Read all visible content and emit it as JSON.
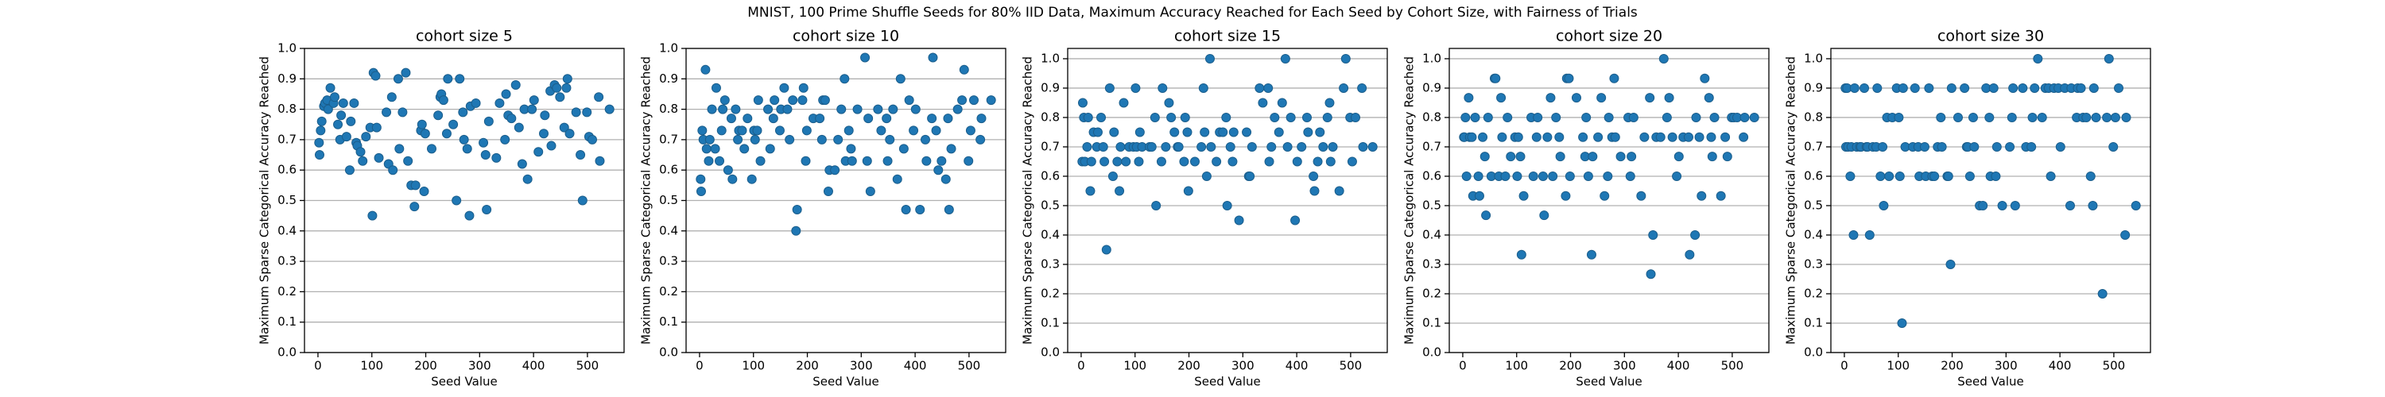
{
  "title": "MNIST, 100 Prime Shuffle Seeds for 80% IID Data, Maximum Accuracy Reached for Each Seed by Cohort Size, with Fairness of Trials",
  "chart_data": [
    {
      "type": "scatter",
      "title": "cohort size 5",
      "xlabel": "Seed Value",
      "ylabel": "Maximum Sparse Categorical Accuracy Reached",
      "color": "#1f77b4",
      "grid": "y",
      "xlim": [
        -25,
        568
      ],
      "ylim": [
        0,
        1
      ],
      "xticks": [
        0,
        100,
        200,
        300,
        400,
        500
      ],
      "yticks": [
        {
          "value": 0,
          "label": "0.0"
        },
        0.1,
        0.2,
        0.3,
        0.4,
        0.5,
        0.6,
        0.7,
        0.8,
        0.9,
        {
          "value": 1,
          "label": "1.0"
        }
      ],
      "x": [
        2,
        3,
        5,
        7,
        11,
        13,
        17,
        19,
        23,
        29,
        31,
        37,
        41,
        43,
        47,
        53,
        59,
        61,
        67,
        71,
        73,
        79,
        83,
        89,
        97,
        101,
        103,
        107,
        109,
        113,
        127,
        131,
        137,
        139,
        149,
        151,
        157,
        163,
        167,
        173,
        179,
        181,
        191,
        193,
        197,
        199,
        211,
        223,
        227,
        229,
        233,
        239,
        241,
        251,
        257,
        263,
        269,
        271,
        277,
        281,
        283,
        293,
        307,
        311,
        313,
        317,
        331,
        337,
        347,
        349,
        353,
        359,
        367,
        373,
        379,
        383,
        389,
        397,
        401,
        409,
        419,
        421,
        431,
        433,
        439,
        443,
        449,
        457,
        461,
        463,
        467,
        479,
        487,
        491,
        499,
        503,
        509,
        521,
        523,
        541
      ],
      "values": [
        0.69,
        0.65,
        0.73,
        0.76,
        0.81,
        0.82,
        0.83,
        0.8,
        0.87,
        0.82,
        0.84,
        0.75,
        0.7,
        0.78,
        0.82,
        0.71,
        0.6,
        0.76,
        0.82,
        0.69,
        0.68,
        0.66,
        0.63,
        0.71,
        0.74,
        0.45,
        0.92,
        0.91,
        0.74,
        0.64,
        0.79,
        0.62,
        0.84,
        0.6,
        0.9,
        0.67,
        0.79,
        0.92,
        0.63,
        0.55,
        0.48,
        0.55,
        0.73,
        0.75,
        0.53,
        0.72,
        0.67,
        0.78,
        0.84,
        0.85,
        0.83,
        0.72,
        0.9,
        0.75,
        0.5,
        0.9,
        0.79,
        0.7,
        0.67,
        0.45,
        0.81,
        0.82,
        0.69,
        0.65,
        0.47,
        0.76,
        0.64,
        0.82,
        0.7,
        0.85,
        0.78,
        0.77,
        0.88,
        0.74,
        0.62,
        0.8,
        0.57,
        0.8,
        0.83,
        0.66,
        0.72,
        0.78,
        0.86,
        0.68,
        0.88,
        0.87,
        0.84,
        0.74,
        0.87,
        0.9,
        0.72,
        0.79,
        0.65,
        0.5,
        0.79,
        0.71,
        0.7,
        0.84,
        0.63,
        0.8
      ]
    },
    {
      "type": "scatter",
      "title": "cohort size 10",
      "xlabel": "Seed Value",
      "ylabel": "Maximum Sparse Categorical Accuracy Reached",
      "color": "#1f77b4",
      "grid": "y",
      "xlim": [
        -25,
        568
      ],
      "ylim": [
        0,
        1
      ],
      "xticks": [
        0,
        100,
        200,
        300,
        400,
        500
      ],
      "yticks": [
        {
          "value": 0,
          "label": "0.0"
        },
        0.1,
        0.2,
        0.3,
        0.4,
        0.5,
        0.6,
        0.7,
        0.8,
        0.9,
        {
          "value": 1,
          "label": "1.0"
        }
      ],
      "x": [
        2,
        3,
        5,
        7,
        11,
        13,
        17,
        19,
        23,
        29,
        31,
        37,
        41,
        43,
        47,
        53,
        59,
        61,
        67,
        71,
        73,
        79,
        83,
        89,
        97,
        101,
        103,
        107,
        109,
        113,
        127,
        131,
        137,
        139,
        149,
        151,
        157,
        163,
        167,
        173,
        179,
        181,
        191,
        193,
        197,
        199,
        211,
        223,
        227,
        229,
        233,
        239,
        241,
        251,
        257,
        263,
        269,
        271,
        277,
        281,
        283,
        293,
        307,
        311,
        313,
        317,
        331,
        337,
        347,
        349,
        353,
        359,
        367,
        373,
        379,
        383,
        389,
        397,
        401,
        409,
        419,
        421,
        431,
        433,
        439,
        443,
        449,
        457,
        461,
        463,
        467,
        479,
        487,
        491,
        499,
        503,
        509,
        521,
        523,
        541
      ],
      "values": [
        0.57,
        0.53,
        0.73,
        0.7,
        0.93,
        0.67,
        0.63,
        0.7,
        0.8,
        0.67,
        0.87,
        0.63,
        0.73,
        0.8,
        0.83,
        0.6,
        0.77,
        0.57,
        0.8,
        0.7,
        0.73,
        0.73,
        0.67,
        0.77,
        0.57,
        0.73,
        0.7,
        0.73,
        0.83,
        0.63,
        0.8,
        0.67,
        0.77,
        0.83,
        0.73,
        0.8,
        0.87,
        0.8,
        0.7,
        0.83,
        0.4,
        0.47,
        0.83,
        0.87,
        0.63,
        0.73,
        0.77,
        0.77,
        0.7,
        0.83,
        0.83,
        0.53,
        0.6,
        0.6,
        0.7,
        0.8,
        0.9,
        0.63,
        0.73,
        0.67,
        0.63,
        0.8,
        0.97,
        0.63,
        0.77,
        0.53,
        0.8,
        0.73,
        0.77,
        0.63,
        0.7,
        0.8,
        0.57,
        0.9,
        0.67,
        0.47,
        0.83,
        0.73,
        0.8,
        0.47,
        0.7,
        0.63,
        0.77,
        0.97,
        0.73,
        0.6,
        0.63,
        0.57,
        0.77,
        0.47,
        0.67,
        0.8,
        0.83,
        0.93,
        0.63,
        0.73,
        0.83,
        0.7,
        0.77,
        0.83
      ]
    },
    {
      "type": "scatter",
      "title": "cohort size 15",
      "xlabel": "Seed Value",
      "ylabel": "Maximum Sparse Categorical Accuracy Reached",
      "color": "#1f77b4",
      "grid": "y",
      "xlim": [
        -25,
        568
      ],
      "ylim": [
        0,
        1.035
      ],
      "xticks": [
        0,
        100,
        200,
        300,
        400,
        500
      ],
      "yticks": [
        {
          "value": 0,
          "label": "0.0"
        },
        0.1,
        0.2,
        0.3,
        0.4,
        0.5,
        0.6,
        0.7,
        0.8,
        0.9,
        {
          "value": 1,
          "label": "1.0"
        }
      ],
      "x": [
        2,
        3,
        5,
        7,
        11,
        13,
        17,
        19,
        23,
        29,
        31,
        37,
        41,
        43,
        47,
        53,
        59,
        61,
        67,
        71,
        73,
        79,
        83,
        89,
        97,
        101,
        103,
        107,
        109,
        113,
        127,
        131,
        137,
        139,
        149,
        151,
        157,
        163,
        167,
        173,
        179,
        181,
        191,
        193,
        197,
        199,
        211,
        223,
        227,
        229,
        233,
        239,
        241,
        251,
        257,
        263,
        269,
        271,
        277,
        281,
        283,
        293,
        307,
        311,
        313,
        317,
        331,
        337,
        347,
        349,
        353,
        359,
        367,
        373,
        379,
        383,
        389,
        397,
        401,
        409,
        419,
        421,
        431,
        433,
        439,
        443,
        449,
        457,
        461,
        463,
        467,
        479,
        487,
        491,
        499,
        503,
        509,
        521,
        523,
        541
      ],
      "values": [
        0.65,
        0.85,
        0.8,
        0.65,
        0.7,
        0.8,
        0.55,
        0.65,
        0.75,
        0.7,
        0.75,
        0.8,
        0.7,
        0.65,
        0.35,
        0.9,
        0.6,
        0.75,
        0.65,
        0.55,
        0.7,
        0.85,
        0.65,
        0.7,
        0.7,
        0.9,
        0.7,
        0.65,
        0.75,
        0.7,
        0.7,
        0.7,
        0.8,
        0.5,
        0.65,
        0.9,
        0.7,
        0.85,
        0.8,
        0.75,
        0.7,
        0.7,
        0.65,
        0.8,
        0.75,
        0.55,
        0.65,
        0.7,
        0.9,
        0.75,
        0.6,
        1.0,
        0.7,
        0.65,
        0.75,
        0.75,
        0.8,
        0.5,
        0.7,
        0.65,
        0.75,
        0.45,
        0.75,
        0.6,
        0.6,
        0.7,
        0.9,
        0.85,
        0.9,
        0.65,
        0.7,
        0.8,
        0.75,
        0.85,
        1.0,
        0.7,
        0.8,
        0.45,
        0.65,
        0.7,
        0.8,
        0.75,
        0.6,
        0.55,
        0.65,
        0.75,
        0.7,
        0.8,
        0.85,
        0.65,
        0.7,
        0.55,
        0.9,
        1.0,
        0.8,
        0.65,
        0.8,
        0.9,
        0.7,
        0.7
      ]
    },
    {
      "type": "scatter",
      "title": "cohort size 20",
      "xlabel": "Seed Value",
      "ylabel": "Maximum Sparse Categorical Accuracy Reached",
      "color": "#1f77b4",
      "grid": "y",
      "xlim": [
        -25,
        568
      ],
      "ylim": [
        0,
        1.035
      ],
      "xticks": [
        0,
        100,
        200,
        300,
        400,
        500
      ],
      "yticks": [
        {
          "value": 0,
          "label": "0.0"
        },
        0.1,
        0.2,
        0.3,
        0.4,
        0.5,
        0.6,
        0.7,
        0.8,
        0.9,
        {
          "value": 1,
          "label": "1.0"
        }
      ],
      "x": [
        2,
        3,
        5,
        7,
        11,
        13,
        17,
        19,
        23,
        29,
        31,
        37,
        41,
        43,
        47,
        53,
        59,
        61,
        67,
        71,
        73,
        79,
        83,
        89,
        97,
        101,
        103,
        107,
        109,
        113,
        127,
        131,
        137,
        139,
        149,
        151,
        157,
        163,
        167,
        173,
        179,
        181,
        191,
        193,
        197,
        199,
        211,
        223,
        227,
        229,
        233,
        239,
        241,
        251,
        257,
        263,
        269,
        271,
        277,
        281,
        283,
        293,
        307,
        311,
        313,
        317,
        331,
        337,
        347,
        349,
        353,
        359,
        367,
        373,
        379,
        383,
        389,
        397,
        401,
        409,
        419,
        421,
        431,
        433,
        439,
        443,
        449,
        457,
        461,
        463,
        467,
        479,
        487,
        491,
        499,
        503,
        509,
        521,
        523,
        541
      ],
      "values": [
        0.733,
        0.733,
        0.8,
        0.6,
        0.867,
        0.733,
        0.733,
        0.533,
        0.8,
        0.6,
        0.533,
        0.733,
        0.667,
        0.467,
        0.8,
        0.6,
        0.933,
        0.933,
        0.6,
        0.867,
        0.733,
        0.6,
        0.8,
        0.667,
        0.733,
        0.6,
        0.733,
        0.667,
        0.333,
        0.533,
        0.8,
        0.6,
        0.733,
        0.8,
        0.6,
        0.467,
        0.733,
        0.867,
        0.6,
        0.8,
        0.733,
        0.667,
        0.533,
        0.933,
        0.933,
        0.6,
        0.867,
        0.733,
        0.667,
        0.8,
        0.6,
        0.333,
        0.667,
        0.733,
        0.867,
        0.533,
        0.6,
        0.8,
        0.733,
        0.933,
        0.733,
        0.667,
        0.8,
        0.6,
        0.667,
        0.8,
        0.533,
        0.733,
        0.867,
        0.267,
        0.4,
        0.733,
        0.733,
        1.0,
        0.8,
        0.867,
        0.733,
        0.6,
        0.667,
        0.733,
        0.733,
        0.333,
        0.4,
        0.8,
        0.733,
        0.533,
        0.933,
        0.867,
        0.733,
        0.667,
        0.8,
        0.533,
        0.733,
        0.667,
        0.8,
        0.8,
        0.8,
        0.733,
        0.8,
        0.8
      ]
    },
    {
      "type": "scatter",
      "title": "cohort size 30",
      "xlabel": "Seed Value",
      "ylabel": "Maximum Sparse Categorical Accuracy Reached",
      "color": "#1f77b4",
      "grid": "y",
      "xlim": [
        -25,
        568
      ],
      "ylim": [
        0,
        1.035
      ],
      "xticks": [
        0,
        100,
        200,
        300,
        400,
        500
      ],
      "yticks": [
        {
          "value": 0,
          "label": "0.0"
        },
        0.1,
        0.2,
        0.3,
        0.4,
        0.5,
        0.6,
        0.7,
        0.8,
        0.9,
        {
          "value": 1,
          "label": "1.0"
        }
      ],
      "x": [
        2,
        3,
        5,
        7,
        11,
        13,
        17,
        19,
        23,
        29,
        31,
        37,
        41,
        43,
        47,
        53,
        59,
        61,
        67,
        71,
        73,
        79,
        83,
        89,
        97,
        101,
        103,
        107,
        109,
        113,
        127,
        131,
        137,
        139,
        149,
        151,
        157,
        163,
        167,
        173,
        179,
        181,
        191,
        193,
        197,
        199,
        211,
        223,
        227,
        229,
        233,
        239,
        241,
        251,
        257,
        263,
        269,
        271,
        277,
        281,
        283,
        293,
        307,
        311,
        313,
        317,
        331,
        337,
        347,
        349,
        353,
        359,
        367,
        373,
        379,
        383,
        389,
        397,
        401,
        409,
        419,
        421,
        431,
        433,
        439,
        443,
        449,
        457,
        461,
        463,
        467,
        479,
        487,
        491,
        499,
        503,
        509,
        521,
        523,
        541
      ],
      "values": [
        0.9,
        0.7,
        0.9,
        0.7,
        0.6,
        0.7,
        0.4,
        0.9,
        0.7,
        0.7,
        0.7,
        0.9,
        0.7,
        0.7,
        0.4,
        0.7,
        0.7,
        0.9,
        0.6,
        0.7,
        0.5,
        0.8,
        0.6,
        0.8,
        0.9,
        0.8,
        0.6,
        0.1,
        0.9,
        0.7,
        0.7,
        0.9,
        0.7,
        0.6,
        0.7,
        0.6,
        0.9,
        0.6,
        0.6,
        0.7,
        0.8,
        0.7,
        0.6,
        0.6,
        0.3,
        0.9,
        0.8,
        0.9,
        0.7,
        0.7,
        0.6,
        0.8,
        0.7,
        0.5,
        0.5,
        0.9,
        0.8,
        0.6,
        0.9,
        0.6,
        0.7,
        0.5,
        0.7,
        0.8,
        0.9,
        0.5,
        0.9,
        0.7,
        0.7,
        0.8,
        0.9,
        1.0,
        0.8,
        0.9,
        0.9,
        0.6,
        0.9,
        0.9,
        0.7,
        0.9,
        0.5,
        0.9,
        0.8,
        0.9,
        0.9,
        0.8,
        0.8,
        0.6,
        0.5,
        0.9,
        0.8,
        0.2,
        0.8,
        1.0,
        0.7,
        0.8,
        0.9,
        0.4,
        0.8,
        0.5
      ]
    }
  ]
}
